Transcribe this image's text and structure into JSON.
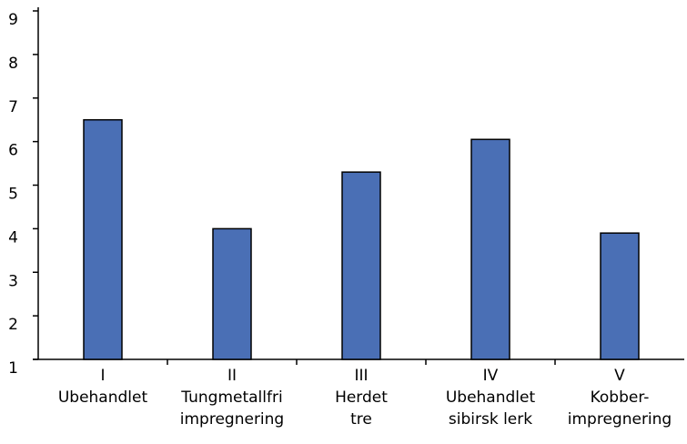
{
  "chart_data": {
    "type": "bar",
    "categories": [
      [
        "I",
        "Ubehandlet"
      ],
      [
        "II",
        "Tungmetallfri",
        "impregnering"
      ],
      [
        "III",
        "Herdet",
        "tre"
      ],
      [
        "IV",
        "Ubehandlet",
        "sibirsk lerk"
      ],
      [
        "V",
        "Kobber-",
        "impregnering"
      ]
    ],
    "values": [
      6.5,
      4.0,
      5.3,
      6.05,
      3.9
    ],
    "color": "#4a6fb5",
    "ylim": [
      1,
      9
    ],
    "yticks": [
      1,
      2,
      3,
      4,
      5,
      6,
      7,
      8,
      9
    ],
    "grid": false
  }
}
